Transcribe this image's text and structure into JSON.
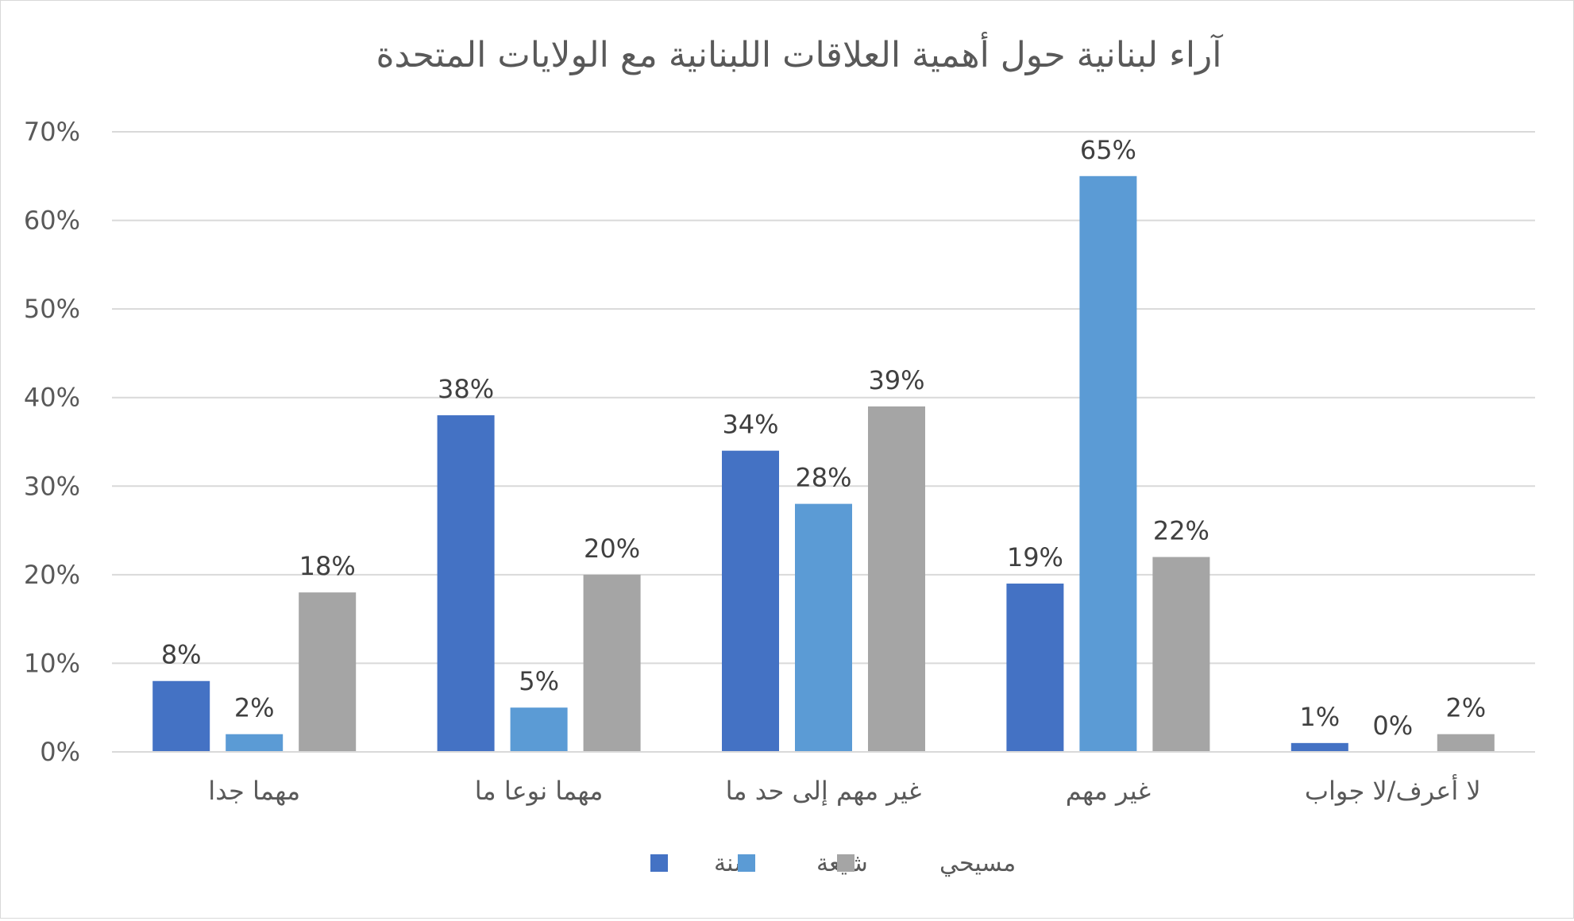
{
  "chart_data": {
    "type": "bar",
    "title": "آراء لبنانية حول أهمية العلاقات اللبنانية مع الولايات المتحدة",
    "xlabel": "",
    "ylabel": "",
    "categories": [
      "مهما جدا",
      "مهما نوعا ما",
      "غير مهم إلى حد ما",
      "غير مهم",
      "لا أعرف/لا جواب"
    ],
    "series": [
      {
        "name": "سنة",
        "color": "#4472C4",
        "values": [
          8,
          38,
          34,
          19,
          1
        ],
        "labels": [
          "8%",
          "38%",
          "34%",
          "19%",
          "1%"
        ]
      },
      {
        "name": "شيعة",
        "color": "#5B9BD5",
        "values": [
          2,
          5,
          28,
          65,
          0
        ],
        "labels": [
          "2%",
          "5%",
          "28%",
          "65%",
          "0%"
        ]
      },
      {
        "name": "مسيحي",
        "color": "#A5A5A5",
        "values": [
          18,
          20,
          39,
          22,
          2
        ],
        "labels": [
          "18%",
          "20%",
          "39%",
          "22%",
          "2%"
        ]
      }
    ],
    "ylim": [
      0,
      70
    ],
    "yticks": [
      0,
      10,
      20,
      30,
      40,
      50,
      60,
      70
    ],
    "ytick_labels": [
      "0%",
      "10%",
      "20%",
      "30%",
      "40%",
      "50%",
      "60%",
      "70%"
    ],
    "grid": true,
    "legend_position": "bottom"
  }
}
